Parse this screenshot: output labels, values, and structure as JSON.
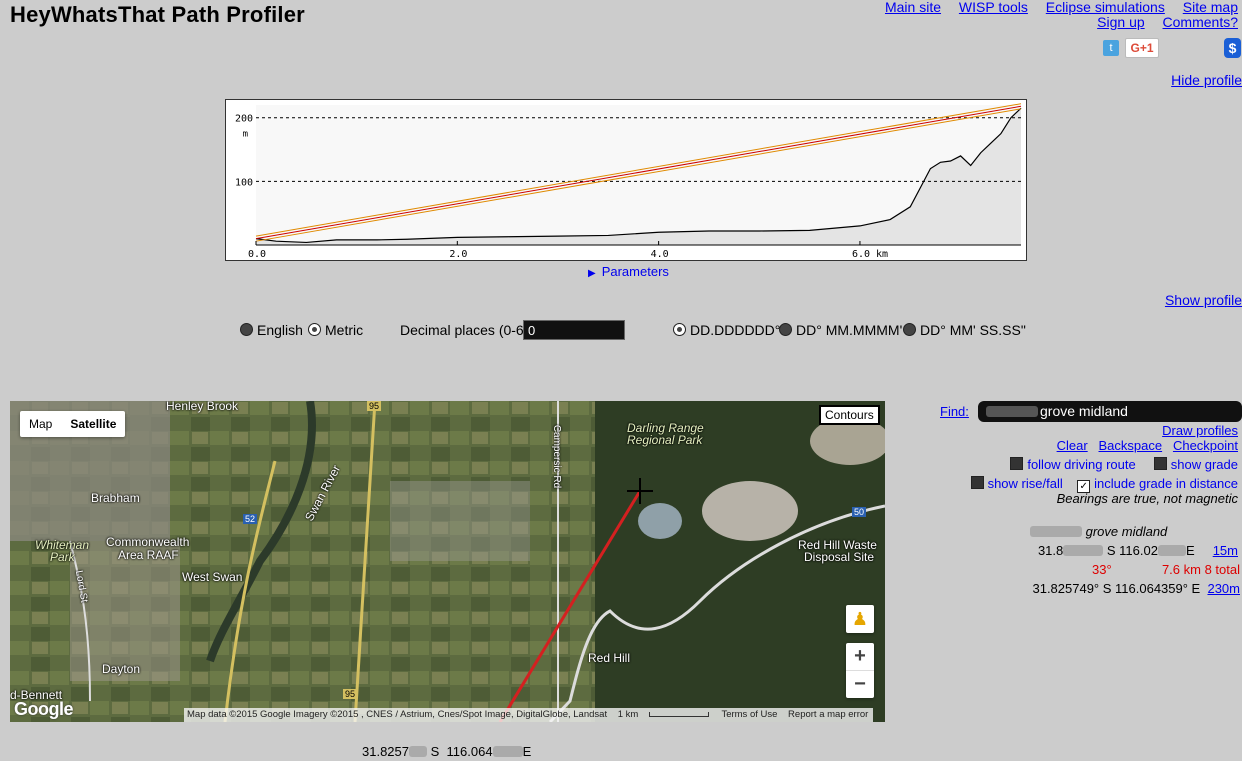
{
  "title": "HeyWhatsThat Path Profiler",
  "nav": {
    "row1": [
      "Main site",
      "WISP tools",
      "Eclipse simulations",
      "Site map"
    ],
    "row2": [
      "Sign up",
      "Comments?"
    ]
  },
  "social": {
    "twitter_icon": "t",
    "gplus_label": "G+1",
    "donate_icon": "$"
  },
  "hide_profile": "Hide profile",
  "show_profile": "Show profile",
  "profile_chart": {
    "x_ticks": [
      "0.0",
      "2.0",
      "4.0",
      "6.0 km"
    ],
    "y_ticks": [
      "200",
      "100"
    ],
    "y_unit": "m"
  },
  "chart_data": {
    "type": "line",
    "xlabel": "km",
    "ylabel": "m",
    "xlim": [
      0,
      7.6
    ],
    "ylim": [
      0,
      220
    ],
    "series": [
      {
        "x": [
          0,
          0.2,
          0.5,
          0.8,
          1.2,
          1.5,
          2.0,
          2.5,
          3.0,
          3.5,
          4.0,
          4.5,
          5.0,
          5.5,
          6.0,
          6.3,
          6.5,
          6.6,
          6.7,
          6.8,
          6.9,
          7.0,
          7.1,
          7.2,
          7.3,
          7.4,
          7.5,
          7.6
        ],
        "y": [
          10,
          6,
          4,
          8,
          8,
          9,
          12,
          13,
          14,
          15,
          20,
          22,
          22,
          23,
          30,
          40,
          60,
          90,
          120,
          130,
          132,
          140,
          125,
          145,
          160,
          175,
          200,
          215
        ]
      },
      {
        "x": [
          0,
          7.6
        ],
        "y": [
          10,
          218
        ]
      },
      {
        "x": [
          0,
          7.6
        ],
        "y": [
          14,
          222
        ]
      },
      {
        "x": [
          0,
          7.6
        ],
        "y": [
          6,
          214
        ]
      }
    ],
    "colors": [
      "#000000",
      "#cc0000",
      "#e08a00",
      "#e08a00"
    ],
    "grid": "dashed at 100 and 200"
  },
  "parameters": "Parameters",
  "units": {
    "english": "English",
    "metric": "Metric"
  },
  "decimal": {
    "label": "Decimal places (0-6)",
    "value": "0"
  },
  "formats": [
    "DD.DDDDDD°",
    "DD° MM.MMMM'",
    "DD° MM' SS.SS\""
  ],
  "map": {
    "types": [
      "Map",
      "Satellite"
    ],
    "contours": "Contours",
    "labels": {
      "henley": "Henley Brook",
      "brabham": "Brabham",
      "commonwealth": "Commonwealth",
      "area": "Area RAAF",
      "whiteman": "Whiteman",
      "park": "Park",
      "westswan": "West Swan",
      "dayton": "Dayton",
      "bennett": "d-Bennett",
      "swanriver": "Swan River",
      "campersic": "Campersic Rd",
      "lordst": "Lord St",
      "darling1": "Darling Range",
      "darling2": "Regional Park",
      "redhillwaste1": "Red Hill Waste",
      "redhillwaste2": "Disposal Site",
      "redhill": "Red Hill",
      "r95a": "95",
      "r95b": "95",
      "r52": "52",
      "r50": "50"
    },
    "footer": [
      "Map data ©2015 Google Imagery ©2015 , CNES / Astrium, Cnes/Spot Image, DigitalGlobe, Landsat",
      "1 km",
      "Terms of Use",
      "Report a map error"
    ],
    "google": "Google"
  },
  "coord_below_map": {
    "a": "31.8257",
    "b": "S",
    "c": "116.064",
    "d": "E"
  },
  "find": {
    "label": "Find:",
    "value": "grove midland"
  },
  "actions": {
    "draw": "Draw profiles",
    "clear": "Clear",
    "backspace": "Backspace",
    "checkpoint": "Checkpoint"
  },
  "options": {
    "driving": "follow driving route",
    "grade": "show grade",
    "risefall": "show rise/fall",
    "includegrade": "include grade in distance",
    "bearings": "Bearings are true, not magnetic"
  },
  "route": {
    "place": "grove midland",
    "pt1": {
      "lat": "31.8",
      "ns": "S",
      "lon": "116.02",
      "ew": "E",
      "elev": "15m"
    },
    "seg": {
      "bearing": "33°",
      "dist": "7.6 km 8 total"
    },
    "pt2": {
      "text": "31.825749° S 116.064359° E",
      "elev": "230m"
    }
  }
}
